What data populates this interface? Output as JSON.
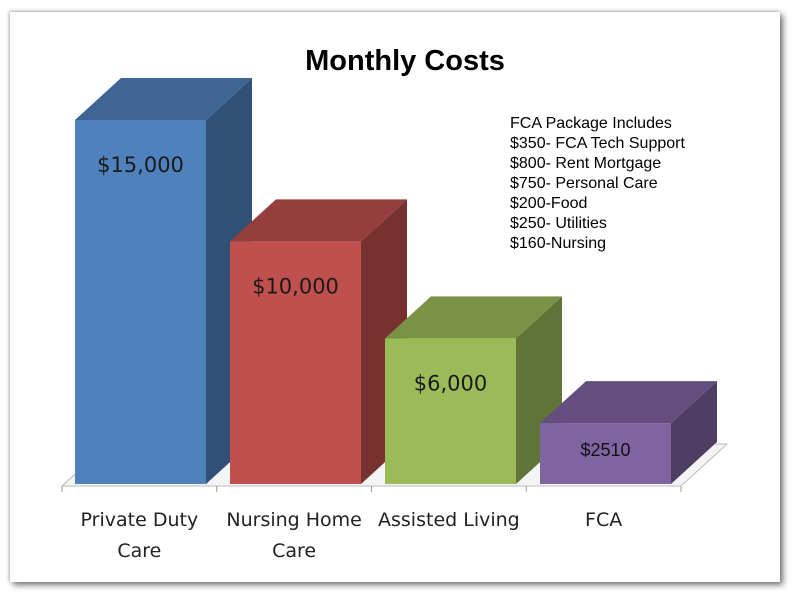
{
  "chart_data": {
    "type": "bar",
    "title": "Monthly Costs",
    "categories": [
      [
        "Private Duty",
        "Care"
      ],
      [
        "Nursing Home",
        "Care"
      ],
      [
        "Assisted Living"
      ],
      [
        "FCA"
      ]
    ],
    "values": [
      15000,
      10000,
      6000,
      2510
    ],
    "data_labels": [
      "$15,000",
      "$10,000",
      "$6,000",
      "$2510"
    ],
    "colors": [
      "#4F81BD",
      "#C0504D",
      "#9BBB59",
      "#8064A2"
    ],
    "ylim": [
      0,
      15000
    ],
    "grid": false,
    "style": "3d-column"
  },
  "annotation": {
    "lines": [
      "FCA Package Includes",
      "$350- FCA Tech Support",
      "$800- Rent Mortgage",
      "$750- Personal Care",
      "$200-Food",
      "$250- Utilities",
      "$160-Nursing"
    ]
  }
}
